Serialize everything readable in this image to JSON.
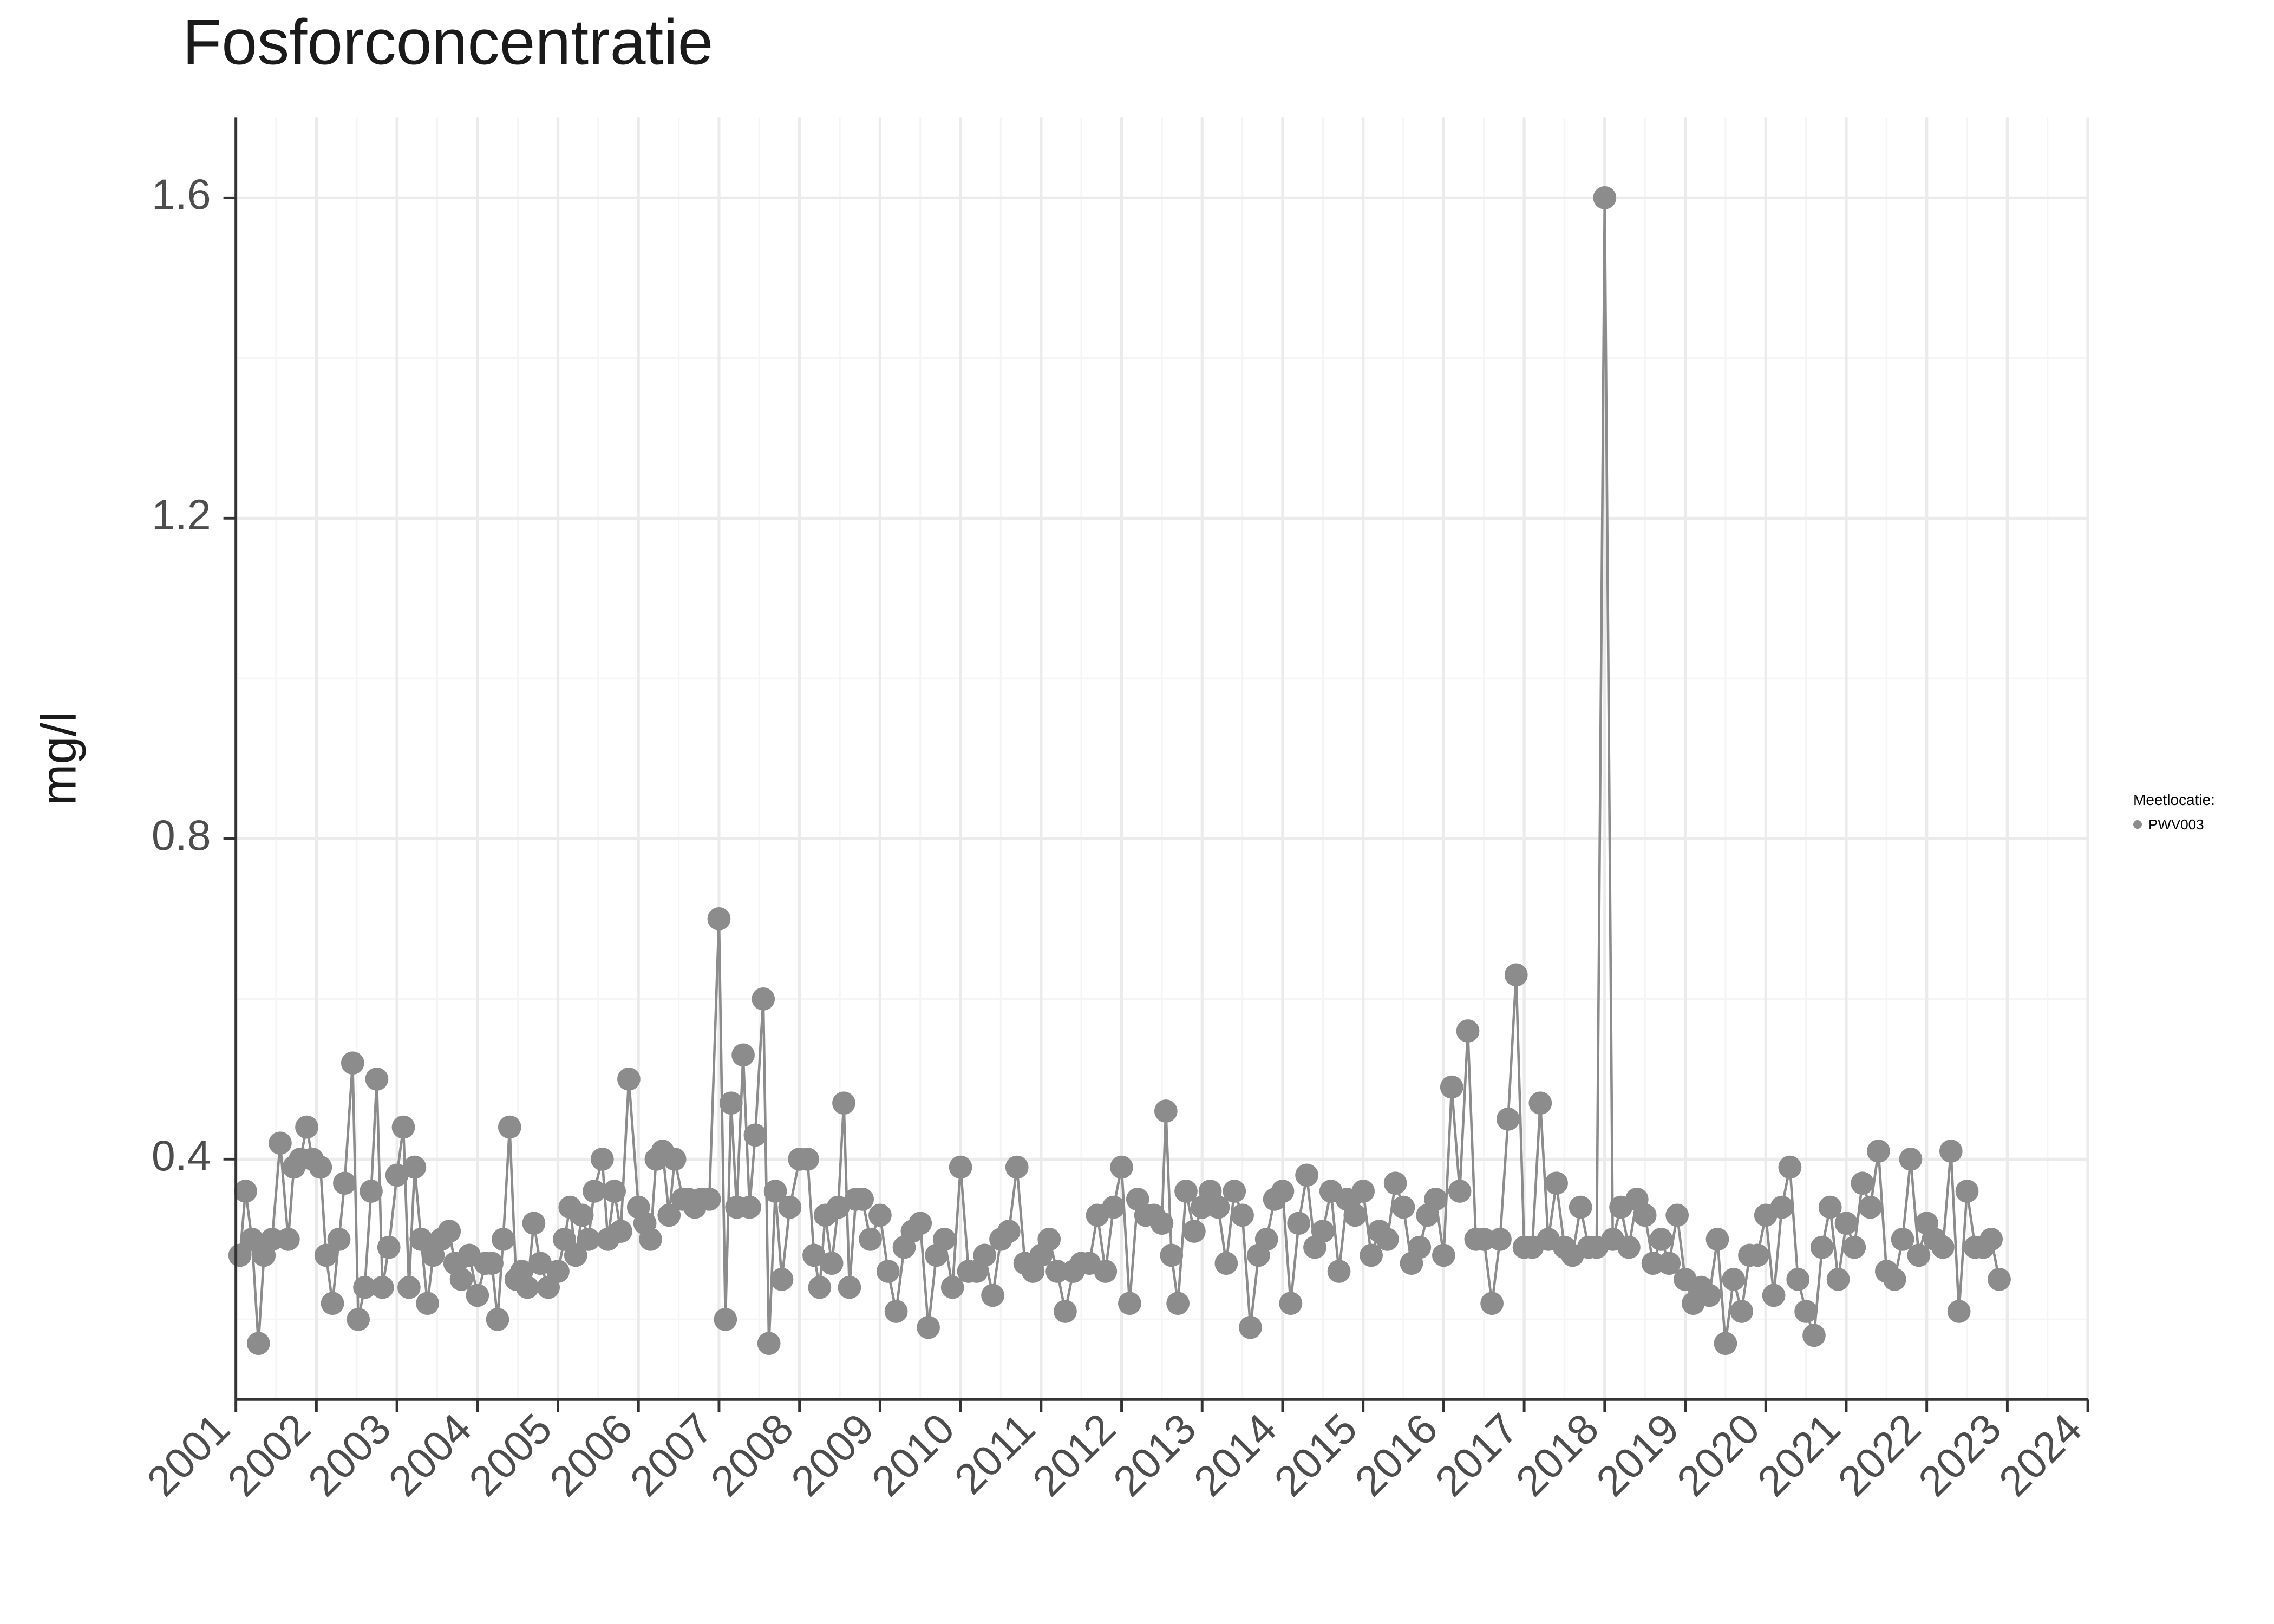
{
  "chart": {
    "type": "line+scatter",
    "title": "Fosforconcentratie",
    "title_fontsize": 36,
    "title_color": "#1a1a1a",
    "ylabel": "mg/l",
    "ylabel_fontsize": 28,
    "ylabel_color": "#1a1a1a",
    "background_color": "#ffffff",
    "panel_background": "#ffffff",
    "major_grid_color": "#ebebeb",
    "minor_grid_color": "#f5f5f5",
    "axis_line_color": "#333333",
    "tick_color": "#333333",
    "tick_label_color": "#4d4d4d",
    "tick_label_fontsize": 24,
    "x_tick_rotation": -45,
    "series_color": "#8c8c8c",
    "marker_radius": 6.5,
    "line_width": 1.4,
    "x": {
      "min": 2001.0,
      "max": 2024.0,
      "ticks": [
        2001,
        2002,
        2003,
        2004,
        2005,
        2006,
        2007,
        2008,
        2009,
        2010,
        2011,
        2012,
        2013,
        2014,
        2015,
        2016,
        2017,
        2018,
        2019,
        2020,
        2021,
        2022,
        2023,
        2024
      ],
      "tick_labels": [
        "2001",
        "2002",
        "2003",
        "2004",
        "2005",
        "2006",
        "2007",
        "2008",
        "2009",
        "2010",
        "2011",
        "2012",
        "2013",
        "2014",
        "2015",
        "2016",
        "2017",
        "2018",
        "2019",
        "2020",
        "2021",
        "2022",
        "2023",
        "2024"
      ]
    },
    "y": {
      "min": 0.1,
      "max": 1.7,
      "ticks": [
        0.4,
        0.8,
        1.2,
        1.6
      ],
      "tick_labels": [
        "0.4",
        "0.8",
        "1.2",
        "1.6"
      ]
    },
    "series": [
      {
        "name": "PWV003",
        "color": "#8c8c8c",
        "points": [
          [
            2001.05,
            0.28
          ],
          [
            2001.12,
            0.36
          ],
          [
            2001.2,
            0.3
          ],
          [
            2001.28,
            0.17
          ],
          [
            2001.35,
            0.28
          ],
          [
            2001.45,
            0.3
          ],
          [
            2001.55,
            0.42
          ],
          [
            2001.65,
            0.3
          ],
          [
            2001.72,
            0.39
          ],
          [
            2001.8,
            0.4
          ],
          [
            2001.88,
            0.44
          ],
          [
            2001.95,
            0.4
          ],
          [
            2002.05,
            0.39
          ],
          [
            2002.12,
            0.28
          ],
          [
            2002.2,
            0.22
          ],
          [
            2002.28,
            0.3
          ],
          [
            2002.35,
            0.37
          ],
          [
            2002.45,
            0.52
          ],
          [
            2002.52,
            0.2
          ],
          [
            2002.6,
            0.24
          ],
          [
            2002.68,
            0.36
          ],
          [
            2002.75,
            0.5
          ],
          [
            2002.82,
            0.24
          ],
          [
            2002.9,
            0.29
          ],
          [
            2003.0,
            0.38
          ],
          [
            2003.08,
            0.44
          ],
          [
            2003.15,
            0.24
          ],
          [
            2003.22,
            0.39
          ],
          [
            2003.3,
            0.3
          ],
          [
            2003.38,
            0.22
          ],
          [
            2003.45,
            0.28
          ],
          [
            2003.55,
            0.3
          ],
          [
            2003.65,
            0.31
          ],
          [
            2003.72,
            0.27
          ],
          [
            2003.8,
            0.25
          ],
          [
            2003.9,
            0.28
          ],
          [
            2004.0,
            0.23
          ],
          [
            2004.1,
            0.27
          ],
          [
            2004.18,
            0.27
          ],
          [
            2004.25,
            0.2
          ],
          [
            2004.32,
            0.3
          ],
          [
            2004.4,
            0.44
          ],
          [
            2004.48,
            0.25
          ],
          [
            2004.55,
            0.26
          ],
          [
            2004.62,
            0.24
          ],
          [
            2004.7,
            0.32
          ],
          [
            2004.78,
            0.27
          ],
          [
            2004.88,
            0.24
          ],
          [
            2005.0,
            0.26
          ],
          [
            2005.08,
            0.3
          ],
          [
            2005.15,
            0.34
          ],
          [
            2005.22,
            0.28
          ],
          [
            2005.3,
            0.33
          ],
          [
            2005.38,
            0.3
          ],
          [
            2005.45,
            0.36
          ],
          [
            2005.55,
            0.4
          ],
          [
            2005.62,
            0.3
          ],
          [
            2005.7,
            0.36
          ],
          [
            2005.78,
            0.31
          ],
          [
            2005.88,
            0.5
          ],
          [
            2006.0,
            0.34
          ],
          [
            2006.08,
            0.32
          ],
          [
            2006.15,
            0.3
          ],
          [
            2006.22,
            0.4
          ],
          [
            2006.3,
            0.41
          ],
          [
            2006.38,
            0.33
          ],
          [
            2006.45,
            0.4
          ],
          [
            2006.55,
            0.35
          ],
          [
            2006.62,
            0.35
          ],
          [
            2006.7,
            0.34
          ],
          [
            2006.78,
            0.35
          ],
          [
            2006.88,
            0.35
          ],
          [
            2007.0,
            0.7
          ],
          [
            2007.08,
            0.2
          ],
          [
            2007.15,
            0.47
          ],
          [
            2007.22,
            0.34
          ],
          [
            2007.3,
            0.53
          ],
          [
            2007.38,
            0.34
          ],
          [
            2007.45,
            0.43
          ],
          [
            2007.55,
            0.6
          ],
          [
            2007.62,
            0.17
          ],
          [
            2007.7,
            0.36
          ],
          [
            2007.78,
            0.25
          ],
          [
            2007.88,
            0.34
          ],
          [
            2008.0,
            0.4
          ],
          [
            2008.1,
            0.4
          ],
          [
            2008.18,
            0.28
          ],
          [
            2008.25,
            0.24
          ],
          [
            2008.32,
            0.33
          ],
          [
            2008.4,
            0.27
          ],
          [
            2008.48,
            0.34
          ],
          [
            2008.55,
            0.47
          ],
          [
            2008.62,
            0.24
          ],
          [
            2008.7,
            0.35
          ],
          [
            2008.78,
            0.35
          ],
          [
            2008.88,
            0.3
          ],
          [
            2009.0,
            0.33
          ],
          [
            2009.1,
            0.26
          ],
          [
            2009.2,
            0.21
          ],
          [
            2009.3,
            0.29
          ],
          [
            2009.4,
            0.31
          ],
          [
            2009.5,
            0.32
          ],
          [
            2009.6,
            0.19
          ],
          [
            2009.7,
            0.28
          ],
          [
            2009.8,
            0.3
          ],
          [
            2009.9,
            0.24
          ],
          [
            2010.0,
            0.39
          ],
          [
            2010.1,
            0.26
          ],
          [
            2010.2,
            0.26
          ],
          [
            2010.3,
            0.28
          ],
          [
            2010.4,
            0.23
          ],
          [
            2010.5,
            0.3
          ],
          [
            2010.6,
            0.31
          ],
          [
            2010.7,
            0.39
          ],
          [
            2010.8,
            0.27
          ],
          [
            2010.9,
            0.26
          ],
          [
            2011.0,
            0.28
          ],
          [
            2011.1,
            0.3
          ],
          [
            2011.2,
            0.26
          ],
          [
            2011.3,
            0.21
          ],
          [
            2011.4,
            0.26
          ],
          [
            2011.5,
            0.27
          ],
          [
            2011.6,
            0.27
          ],
          [
            2011.7,
            0.33
          ],
          [
            2011.8,
            0.26
          ],
          [
            2011.9,
            0.34
          ],
          [
            2012.0,
            0.39
          ],
          [
            2012.1,
            0.22
          ],
          [
            2012.2,
            0.35
          ],
          [
            2012.3,
            0.33
          ],
          [
            2012.4,
            0.33
          ],
          [
            2012.5,
            0.32
          ],
          [
            2012.55,
            0.46
          ],
          [
            2012.62,
            0.28
          ],
          [
            2012.7,
            0.22
          ],
          [
            2012.8,
            0.36
          ],
          [
            2012.9,
            0.31
          ],
          [
            2013.0,
            0.34
          ],
          [
            2013.1,
            0.36
          ],
          [
            2013.2,
            0.34
          ],
          [
            2013.3,
            0.27
          ],
          [
            2013.4,
            0.36
          ],
          [
            2013.5,
            0.33
          ],
          [
            2013.6,
            0.19
          ],
          [
            2013.7,
            0.28
          ],
          [
            2013.8,
            0.3
          ],
          [
            2013.9,
            0.35
          ],
          [
            2014.0,
            0.36
          ],
          [
            2014.1,
            0.22
          ],
          [
            2014.2,
            0.32
          ],
          [
            2014.3,
            0.38
          ],
          [
            2014.4,
            0.29
          ],
          [
            2014.5,
            0.31
          ],
          [
            2014.6,
            0.36
          ],
          [
            2014.7,
            0.26
          ],
          [
            2014.8,
            0.35
          ],
          [
            2014.9,
            0.33
          ],
          [
            2015.0,
            0.36
          ],
          [
            2015.1,
            0.28
          ],
          [
            2015.2,
            0.31
          ],
          [
            2015.3,
            0.3
          ],
          [
            2015.4,
            0.37
          ],
          [
            2015.5,
            0.34
          ],
          [
            2015.6,
            0.27
          ],
          [
            2015.7,
            0.29
          ],
          [
            2015.8,
            0.33
          ],
          [
            2015.9,
            0.35
          ],
          [
            2016.0,
            0.28
          ],
          [
            2016.1,
            0.49
          ],
          [
            2016.2,
            0.36
          ],
          [
            2016.3,
            0.56
          ],
          [
            2016.4,
            0.3
          ],
          [
            2016.5,
            0.3
          ],
          [
            2016.6,
            0.22
          ],
          [
            2016.7,
            0.3
          ],
          [
            2016.8,
            0.45
          ],
          [
            2016.9,
            0.63
          ],
          [
            2017.0,
            0.29
          ],
          [
            2017.1,
            0.29
          ],
          [
            2017.2,
            0.47
          ],
          [
            2017.3,
            0.3
          ],
          [
            2017.4,
            0.37
          ],
          [
            2017.5,
            0.29
          ],
          [
            2017.6,
            0.28
          ],
          [
            2017.7,
            0.34
          ],
          [
            2017.8,
            0.29
          ],
          [
            2017.9,
            0.29
          ],
          [
            2018.0,
            1.6
          ],
          [
            2018.1,
            0.3
          ],
          [
            2018.2,
            0.34
          ],
          [
            2018.3,
            0.29
          ],
          [
            2018.4,
            0.35
          ],
          [
            2018.5,
            0.33
          ],
          [
            2018.6,
            0.27
          ],
          [
            2018.7,
            0.3
          ],
          [
            2018.8,
            0.27
          ],
          [
            2018.9,
            0.33
          ],
          [
            2019.0,
            0.25
          ],
          [
            2019.1,
            0.22
          ],
          [
            2019.2,
            0.24
          ],
          [
            2019.3,
            0.23
          ],
          [
            2019.4,
            0.3
          ],
          [
            2019.5,
            0.17
          ],
          [
            2019.6,
            0.25
          ],
          [
            2019.7,
            0.21
          ],
          [
            2019.8,
            0.28
          ],
          [
            2019.9,
            0.28
          ],
          [
            2020.0,
            0.33
          ],
          [
            2020.1,
            0.23
          ],
          [
            2020.2,
            0.34
          ],
          [
            2020.3,
            0.39
          ],
          [
            2020.4,
            0.25
          ],
          [
            2020.5,
            0.21
          ],
          [
            2020.6,
            0.18
          ],
          [
            2020.7,
            0.29
          ],
          [
            2020.8,
            0.34
          ],
          [
            2020.9,
            0.25
          ],
          [
            2021.0,
            0.32
          ],
          [
            2021.1,
            0.29
          ],
          [
            2021.2,
            0.37
          ],
          [
            2021.3,
            0.34
          ],
          [
            2021.4,
            0.41
          ],
          [
            2021.5,
            0.26
          ],
          [
            2021.6,
            0.25
          ],
          [
            2021.7,
            0.3
          ],
          [
            2021.8,
            0.4
          ],
          [
            2021.9,
            0.28
          ],
          [
            2022.0,
            0.32
          ],
          [
            2022.1,
            0.3
          ],
          [
            2022.2,
            0.29
          ],
          [
            2022.3,
            0.41
          ],
          [
            2022.4,
            0.21
          ],
          [
            2022.5,
            0.36
          ],
          [
            2022.6,
            0.29
          ],
          [
            2022.7,
            0.29
          ],
          [
            2022.8,
            0.3
          ],
          [
            2022.9,
            0.25
          ]
        ]
      }
    ]
  },
  "legend": {
    "title": "Meetlocatie:",
    "items": [
      {
        "label": "PWV003",
        "color": "#8c8c8c"
      }
    ]
  }
}
